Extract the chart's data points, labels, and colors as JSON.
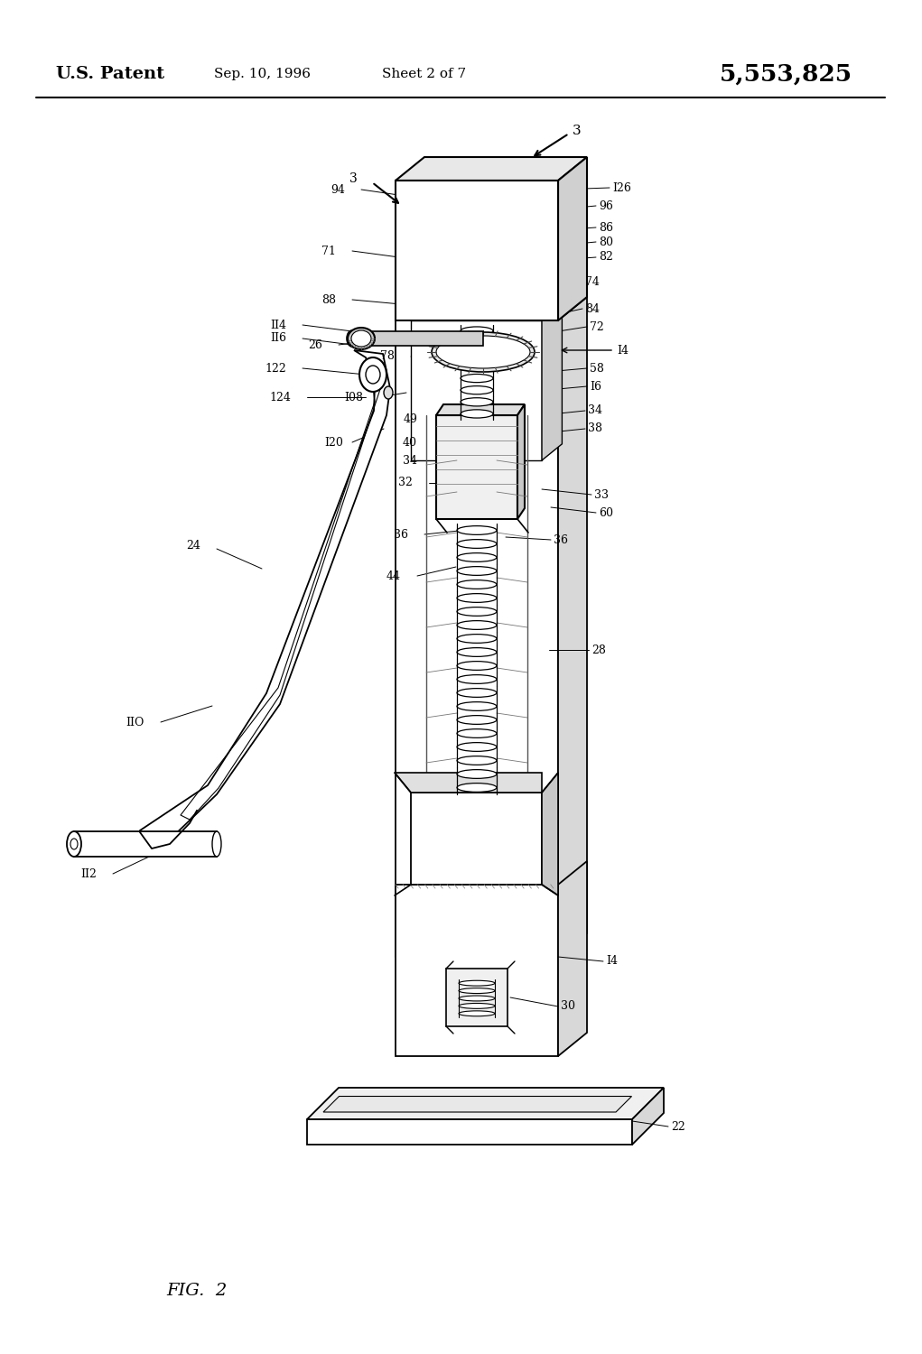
{
  "background_color": "#ffffff",
  "header": {
    "patent_text": "U.S. Patent",
    "date_text": "Sep. 10, 1996",
    "sheet_text": "Sheet 2 of 7",
    "number_text": "5,553,825"
  },
  "figure_label": "FIG.  2",
  "line_color": "#000000"
}
